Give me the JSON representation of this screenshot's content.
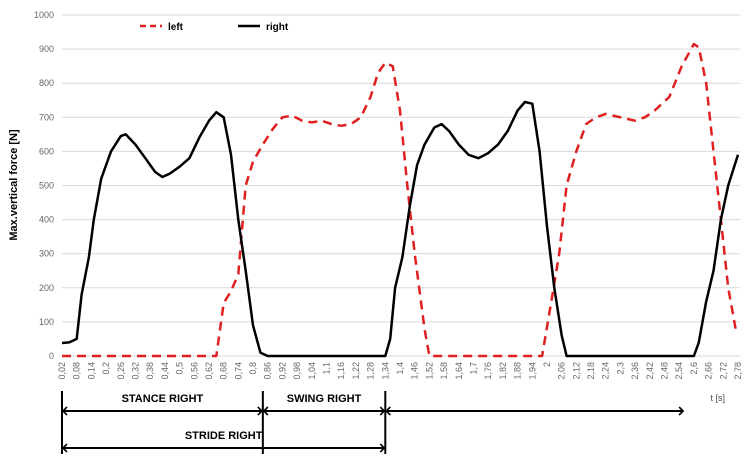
{
  "chart_data": {
    "type": "line",
    "ylabel": "Max.vertical force [N]",
    "xlabel": "t [s]",
    "ylim": [
      0,
      1000
    ],
    "yticks": [
      0,
      100,
      200,
      300,
      400,
      500,
      600,
      700,
      800,
      900,
      1000
    ],
    "xticks": [
      "0,02",
      "0,08",
      "0,14",
      "0,2",
      "0,26",
      "0,32",
      "0,38",
      "0,44",
      "0,5",
      "0,56",
      "0,62",
      "0,68",
      "0,74",
      "0,8",
      "0,86",
      "0,92",
      "0,98",
      "1,04",
      "1,1",
      "1,16",
      "1,22",
      "1,28",
      "1,34",
      "1,4",
      "1,46",
      "1,52",
      "1,58",
      "1,64",
      "1,7",
      "1,76",
      "1,82",
      "1,88",
      "1,94",
      "2",
      "2,06",
      "2,12",
      "2,18",
      "2,24",
      "2,3",
      "2,36",
      "2,42",
      "2,48",
      "2,54",
      "2,6",
      "2,66",
      "2,72",
      "2,78"
    ],
    "grid": "horizontal",
    "legend_position": "top-left",
    "series": [
      {
        "name": "left",
        "color": "#e02020",
        "style": "dashed",
        "points": [
          [
            0.02,
            0
          ],
          [
            0.5,
            0
          ],
          [
            0.62,
            0
          ],
          [
            0.65,
            0
          ],
          [
            0.68,
            155
          ],
          [
            0.71,
            190
          ],
          [
            0.74,
            240
          ],
          [
            0.77,
            500
          ],
          [
            0.8,
            570
          ],
          [
            0.84,
            620
          ],
          [
            0.88,
            665
          ],
          [
            0.92,
            700
          ],
          [
            0.96,
            705
          ],
          [
            1.0,
            690
          ],
          [
            1.04,
            685
          ],
          [
            1.08,
            690
          ],
          [
            1.12,
            680
          ],
          [
            1.16,
            675
          ],
          [
            1.2,
            680
          ],
          [
            1.24,
            700
          ],
          [
            1.28,
            760
          ],
          [
            1.31,
            830
          ],
          [
            1.34,
            860
          ],
          [
            1.37,
            850
          ],
          [
            1.4,
            720
          ],
          [
            1.43,
            500
          ],
          [
            1.46,
            300
          ],
          [
            1.5,
            80
          ],
          [
            1.52,
            0
          ],
          [
            1.94,
            0
          ],
          [
            1.98,
            0
          ],
          [
            2.02,
            170
          ],
          [
            2.05,
            300
          ],
          [
            2.08,
            500
          ],
          [
            2.12,
            600
          ],
          [
            2.16,
            680
          ],
          [
            2.2,
            700
          ],
          [
            2.24,
            710
          ],
          [
            2.3,
            700
          ],
          [
            2.36,
            690
          ],
          [
            2.4,
            700
          ],
          [
            2.44,
            720
          ],
          [
            2.5,
            760
          ],
          [
            2.55,
            850
          ],
          [
            2.6,
            915
          ],
          [
            2.62,
            905
          ],
          [
            2.65,
            800
          ],
          [
            2.68,
            600
          ],
          [
            2.71,
            400
          ],
          [
            2.74,
            200
          ],
          [
            2.77,
            80
          ]
        ]
      },
      {
        "name": "right",
        "color": "#000000",
        "style": "solid",
        "points": [
          [
            0.02,
            38
          ],
          [
            0.05,
            40
          ],
          [
            0.08,
            50
          ],
          [
            0.1,
            180
          ],
          [
            0.13,
            290
          ],
          [
            0.15,
            400
          ],
          [
            0.18,
            520
          ],
          [
            0.22,
            600
          ],
          [
            0.26,
            645
          ],
          [
            0.28,
            650
          ],
          [
            0.32,
            620
          ],
          [
            0.36,
            580
          ],
          [
            0.4,
            540
          ],
          [
            0.43,
            525
          ],
          [
            0.46,
            535
          ],
          [
            0.5,
            555
          ],
          [
            0.54,
            580
          ],
          [
            0.58,
            640
          ],
          [
            0.62,
            690
          ],
          [
            0.65,
            715
          ],
          [
            0.68,
            700
          ],
          [
            0.71,
            590
          ],
          [
            0.74,
            400
          ],
          [
            0.77,
            250
          ],
          [
            0.8,
            90
          ],
          [
            0.83,
            10
          ],
          [
            0.86,
            0
          ],
          [
            1.3,
            0
          ],
          [
            1.34,
            0
          ],
          [
            1.36,
            50
          ],
          [
            1.38,
            200
          ],
          [
            1.41,
            290
          ],
          [
            1.44,
            440
          ],
          [
            1.47,
            560
          ],
          [
            1.5,
            620
          ],
          [
            1.54,
            670
          ],
          [
            1.57,
            680
          ],
          [
            1.6,
            660
          ],
          [
            1.64,
            620
          ],
          [
            1.68,
            590
          ],
          [
            1.72,
            580
          ],
          [
            1.76,
            595
          ],
          [
            1.8,
            620
          ],
          [
            1.84,
            660
          ],
          [
            1.88,
            720
          ],
          [
            1.91,
            745
          ],
          [
            1.94,
            740
          ],
          [
            1.97,
            600
          ],
          [
            2.0,
            380
          ],
          [
            2.03,
            200
          ],
          [
            2.06,
            60
          ],
          [
            2.08,
            0
          ],
          [
            2.6,
            0
          ],
          [
            2.62,
            40
          ],
          [
            2.65,
            160
          ],
          [
            2.68,
            250
          ],
          [
            2.71,
            400
          ],
          [
            2.74,
            500
          ],
          [
            2.78,
            590
          ]
        ]
      }
    ],
    "annotations": [
      {
        "label": "STANCE RIGHT",
        "from": 0.02,
        "to": 0.84
      },
      {
        "label": "SWING RIGHT",
        "from": 0.84,
        "to": 1.34
      },
      {
        "label": "",
        "from": 1.34,
        "to": 2.56
      },
      {
        "label": "STRIDE RIGHT",
        "from": 0.02,
        "to": 1.34
      }
    ]
  }
}
